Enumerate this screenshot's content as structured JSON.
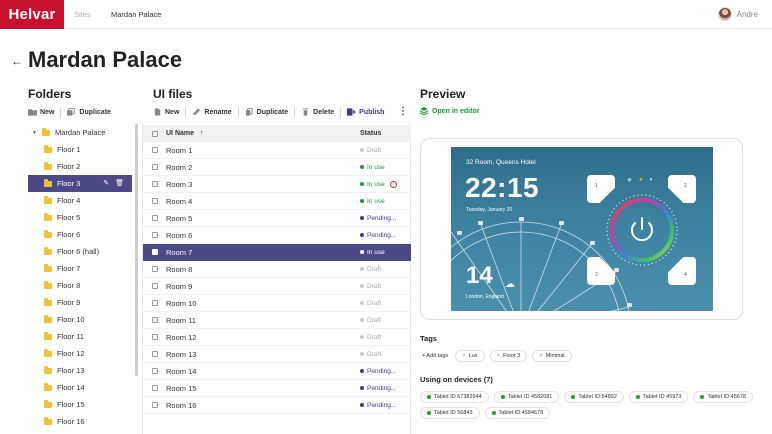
{
  "topbar": {
    "logo": "Helvar",
    "breadcrumb": [
      "Sites",
      "Mardan Palace"
    ],
    "username": "Andre"
  },
  "page": {
    "title": "Mardan Palace"
  },
  "folders": {
    "title": "Folders",
    "toolbar": {
      "new_label": "New",
      "duplicate_label": "Duplicate"
    },
    "root": "Mardan Palace",
    "items": [
      "Floor 1",
      "Floor 2",
      "Floor 3",
      "Floor 4",
      "Floor 5",
      "Floor 6",
      "Floor 6 (hall)",
      "Floor 7",
      "Floor 8",
      "Floor 9",
      "Floor 10",
      "Floor 11",
      "Floor 12",
      "Floor 13",
      "Floor 14",
      "Floor 15",
      "Floor 16"
    ],
    "selected": "Floor 3"
  },
  "files": {
    "title": "UI files",
    "toolbar": {
      "new_label": "New",
      "rename_label": "Rename",
      "duplicate_label": "Duplicate",
      "delete_label": "Delete",
      "publish_label": "Publish"
    },
    "columns": {
      "name": "UI Name",
      "sort": "↑",
      "status": "Status"
    },
    "rows": [
      {
        "name": "Room 1",
        "status": "Draft",
        "type": "draft"
      },
      {
        "name": "Room 2",
        "status": "In use",
        "type": "inuse"
      },
      {
        "name": "Room 3",
        "status": "In use",
        "type": "inuse",
        "warning": true
      },
      {
        "name": "Room 4",
        "status": "In use",
        "type": "inuse"
      },
      {
        "name": "Room 5",
        "status": "Pending...",
        "type": "pending"
      },
      {
        "name": "Room 6",
        "status": "Pending...",
        "type": "pending"
      },
      {
        "name": "Room 7",
        "status": "In use",
        "type": "inuse",
        "selected": true
      },
      {
        "name": "Room 8",
        "status": "Draft",
        "type": "draft"
      },
      {
        "name": "Room 9",
        "status": "Draft",
        "type": "draft"
      },
      {
        "name": "Room 10",
        "status": "Draft",
        "type": "draft"
      },
      {
        "name": "Room 11",
        "status": "Draft",
        "type": "draft"
      },
      {
        "name": "Room 12",
        "status": "Draft",
        "type": "draft"
      },
      {
        "name": "Room 13",
        "status": "Draft",
        "type": "draft"
      },
      {
        "name": "Room 14",
        "status": "Pending...",
        "type": "pending"
      },
      {
        "name": "Room 15",
        "status": "Pending...",
        "type": "pending"
      },
      {
        "name": "Room 16",
        "status": "Pending...",
        "type": "pending"
      }
    ]
  },
  "preview": {
    "title": "Preview",
    "open_editor_label": "Open in editor",
    "screen": {
      "room_title": "32 Room, Queens Hotel",
      "time": "22:15",
      "date": "Tuesday, January 20",
      "temperature": "14",
      "location": "London, England",
      "buttons": [
        "1",
        "2",
        "3",
        "4"
      ]
    },
    "tags_title": "Tags",
    "add_tags_label": "+ Add tags",
    "tags": [
      "Lux",
      "Floor 3",
      "Minimal"
    ],
    "devices_title": "Using on devices (7)",
    "devices": [
      "Tablet ID 67382944",
      "Tablet ID 4582681",
      "Tablet ID 54892",
      "Tablet ID 45973",
      "Tablet ID 45678",
      "Tablet ID 56843",
      "Tablet ID 4584678"
    ]
  },
  "colors": {
    "brand": "#c8102e",
    "selected": "#4b4a86",
    "in_use": "#1a9a3c",
    "pending": "#3c3a8a",
    "draft": "#aaaaaa"
  }
}
